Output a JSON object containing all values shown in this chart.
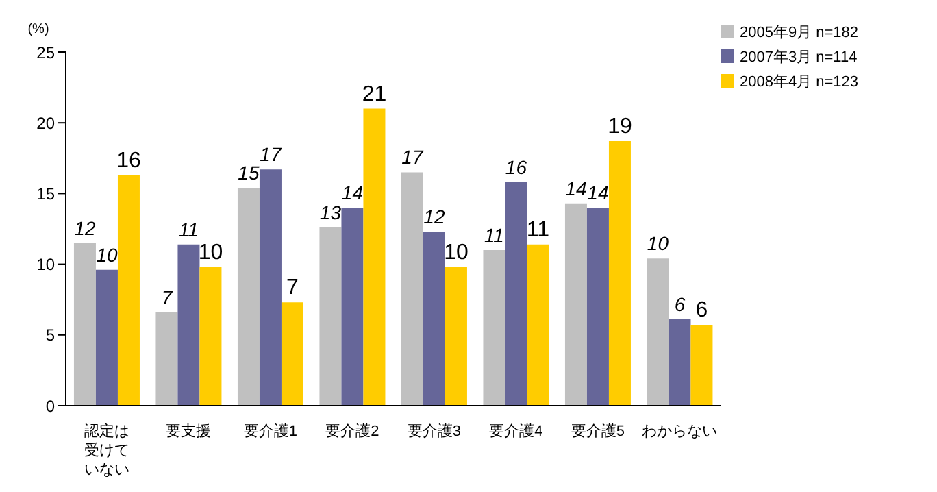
{
  "chart_data": {
    "type": "bar",
    "ylabel": "(%)",
    "categories": [
      "認定は受けていない",
      "要支援",
      "要介護1",
      "要介護2",
      "要介護3",
      "要介護4",
      "要介護5",
      "わからない"
    ],
    "series": [
      {
        "name": "2005年9月 n=182",
        "color": "#c0c0c0",
        "values": [
          11.5,
          6.6,
          15.4,
          12.6,
          16.5,
          11.0,
          14.3,
          10.4
        ],
        "value_labels": [
          "12",
          "7",
          "15",
          "13",
          "17",
          "11",
          "14",
          "10"
        ]
      },
      {
        "name": "2007年3月 n=114",
        "color": "#666699",
        "values": [
          9.6,
          11.4,
          16.7,
          14.0,
          12.3,
          15.8,
          14.0,
          6.1
        ],
        "value_labels": [
          "10",
          "11",
          "17",
          "14",
          "12",
          "16",
          "14",
          "6"
        ]
      },
      {
        "name": "2008年4月 n=123",
        "color": "#ffcc00",
        "values": [
          16.3,
          9.8,
          7.3,
          21.0,
          9.8,
          11.4,
          18.7,
          5.7
        ],
        "value_labels": [
          "16",
          "10",
          "7",
          "21",
          "10",
          "11",
          "19",
          "6"
        ]
      }
    ],
    "ylim": [
      0,
      25
    ],
    "yticks": [
      0,
      5,
      10,
      15,
      20,
      25
    ],
    "legend": "top right"
  }
}
